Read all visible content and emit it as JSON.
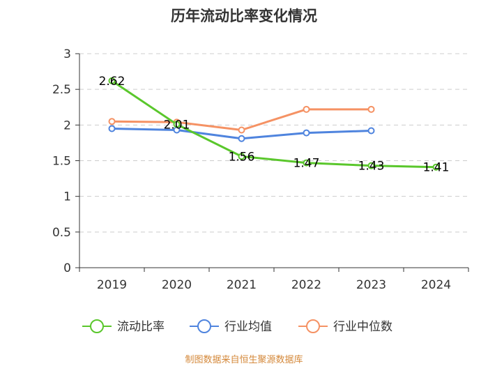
{
  "chart_data": {
    "type": "line",
    "title": "历年流动比率变化情况",
    "categories": [
      "2019",
      "2020",
      "2021",
      "2022",
      "2023",
      "2024"
    ],
    "ylim": [
      0,
      3
    ],
    "yticks": [
      "0",
      "0.5",
      "1",
      "1.5",
      "2",
      "2.5",
      "3"
    ],
    "ytick_values": [
      0,
      0.5,
      1,
      1.5,
      2,
      2.5,
      3
    ],
    "grid": true,
    "legend_position": "bottom",
    "series": [
      {
        "name": "流动比率",
        "color": "#5ac72c",
        "values": [
          2.62,
          2.01,
          1.56,
          1.47,
          1.43,
          1.41
        ],
        "labels": [
          "2.62",
          "2.01",
          "1.56",
          "1.47",
          "1.43",
          "1.41"
        ]
      },
      {
        "name": "行业均值",
        "color": "#4f84de",
        "values": [
          1.95,
          1.93,
          1.81,
          1.89,
          1.92,
          null
        ]
      },
      {
        "name": "行业中位数",
        "color": "#f59264",
        "values": [
          2.05,
          2.04,
          1.93,
          2.22,
          2.22,
          null
        ]
      }
    ],
    "source": "制图数据来自恒生聚源数据库",
    "source_color": "#d4883a"
  }
}
